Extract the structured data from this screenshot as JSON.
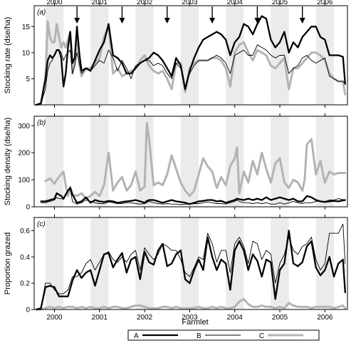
{
  "figure": {
    "x_axis_title": "Farmlet",
    "legend": [
      {
        "key": "A",
        "label": "A",
        "color": "#000000",
        "width": "thick"
      },
      {
        "key": "B",
        "label": "B",
        "color": "#000000",
        "width": "thin"
      },
      {
        "key": "C",
        "label": "C",
        "color": "#b3b3b3",
        "width": "thick"
      }
    ],
    "year_ticks": [
      "2000",
      "2001",
      "2002",
      "2003",
      "2004",
      "2005",
      "2006"
    ],
    "x_range": [
      1999.55,
      2006.5
    ],
    "shaded_winter_periods": [
      [
        1999.8,
        2000.2
      ],
      [
        2000.8,
        2001.2
      ],
      [
        2001.8,
        2002.2
      ],
      [
        2002.8,
        2003.2
      ],
      [
        2003.8,
        2004.2
      ],
      [
        2004.8,
        2005.2
      ],
      [
        2005.8,
        2006.2
      ]
    ],
    "arrow_markers_panel_a": [
      2000.5,
      2001.5,
      2002.5,
      2003.5,
      2004.5,
      2005.5
    ]
  },
  "chart_data": [
    {
      "type": "line",
      "panel_tag": "(a)",
      "ylabel": "Stocking rate (dse/ha)",
      "ylim": [
        0,
        19
      ],
      "yticks": [
        5,
        10,
        15
      ],
      "x": [
        1999.6,
        1999.7,
        1999.8,
        1999.85,
        1999.9,
        1999.95,
        2000.0,
        2000.05,
        2000.1,
        2000.15,
        2000.2,
        2000.25,
        2000.3,
        2000.35,
        2000.4,
        2000.45,
        2000.5,
        2000.55,
        2000.6,
        2000.7,
        2000.8,
        2000.9,
        2001.0,
        2001.1,
        2001.2,
        2001.3,
        2001.4,
        2001.5,
        2001.6,
        2001.7,
        2001.8,
        2001.9,
        2002.0,
        2002.1,
        2002.2,
        2002.3,
        2002.4,
        2002.5,
        2002.6,
        2002.7,
        2002.8,
        2002.9,
        2003.0,
        2003.1,
        2003.2,
        2003.3,
        2003.4,
        2003.5,
        2003.6,
        2003.7,
        2003.8,
        2003.9,
        2004.0,
        2004.1,
        2004.2,
        2004.3,
        2004.4,
        2004.5,
        2004.6,
        2004.7,
        2004.8,
        2004.9,
        2005.0,
        2005.1,
        2005.2,
        2005.3,
        2005.4,
        2005.5,
        2005.6,
        2005.7,
        2005.8,
        2005.9,
        2006.0,
        2006.1,
        2006.2,
        2006.3,
        2006.4,
        2006.45
      ],
      "series": [
        {
          "name": "A",
          "values": [
            0,
            0.3,
            5,
            8.5,
            9.5,
            9,
            9.5,
            10.5,
            10.5,
            9,
            3.5,
            6,
            11,
            14,
            8,
            9,
            15,
            10,
            6.5,
            7,
            6.5,
            8.5,
            10.5,
            12,
            15.5,
            9.5,
            9,
            8,
            6,
            6,
            7,
            8,
            8.5,
            9,
            10,
            9.5,
            8.5,
            7,
            5.5,
            9,
            7.5,
            3,
            6.5,
            9,
            11,
            12.5,
            13,
            13.5,
            14,
            13.5,
            12.5,
            9.5,
            12,
            13,
            15.5,
            15,
            13.5,
            15.5,
            17,
            16.5,
            12.5,
            11,
            12,
            14,
            10,
            12,
            11,
            13,
            14,
            15,
            15,
            13,
            12.5,
            9.5,
            9.5,
            9.5,
            9.2,
            4
          ]
        },
        {
          "name": "B",
          "values": [
            0,
            0.2,
            3,
            6.5,
            8,
            8.5,
            9.5,
            10.5,
            10.5,
            10,
            8.5,
            9.5,
            10,
            10.5,
            6,
            7.5,
            10,
            8,
            6,
            7,
            6.5,
            7.5,
            8.5,
            8,
            10.5,
            9,
            6.5,
            8.5,
            7,
            5,
            7.5,
            8,
            8.5,
            8.5,
            7.5,
            8,
            7.5,
            6,
            5,
            8,
            7,
            3.5,
            6,
            7.5,
            8.5,
            8.5,
            8.5,
            9,
            9.5,
            9,
            8,
            6,
            9.5,
            10,
            10.5,
            9.5,
            9.5,
            11.5,
            11,
            10.5,
            9.5,
            9,
            9.5,
            9.5,
            6,
            7,
            7.5,
            9,
            9.5,
            8.5,
            8,
            8.5,
            9,
            5.5,
            5,
            4.5,
            4.5,
            4
          ]
        },
        {
          "name": "C",
          "values": [
            0,
            0.2,
            5,
            16,
            13,
            12,
            12,
            15.5,
            13,
            11,
            12,
            11,
            12.5,
            14,
            6,
            8,
            14,
            8,
            5.5,
            7,
            7,
            8,
            9,
            13,
            15,
            6,
            7,
            5.5,
            6,
            6.5,
            7,
            8.5,
            9.5,
            7.5,
            6.5,
            6,
            6.5,
            5,
            3,
            8,
            8,
            2.5,
            7,
            8,
            8.5,
            8.5,
            8.5,
            9,
            9,
            8.5,
            7,
            3.5,
            10,
            11.5,
            12,
            10,
            8.5,
            10.5,
            10,
            9.5,
            7.5,
            7,
            8,
            9,
            3,
            7,
            7,
            8,
            9,
            10,
            10,
            9.5,
            8.5,
            6,
            5,
            4.5,
            4.5,
            2
          ]
        }
      ]
    },
    {
      "type": "line",
      "panel_tag": "(b)",
      "ylabel": "Stocking density (dse/ha)",
      "ylim": [
        0,
        335
      ],
      "yticks": [
        0,
        100,
        200,
        300
      ],
      "x": [
        1999.7,
        1999.8,
        1999.9,
        2000.0,
        2000.05,
        2000.1,
        2000.15,
        2000.2,
        2000.25,
        2000.3,
        2000.35,
        2000.4,
        2000.5,
        2000.6,
        2000.7,
        2000.8,
        2000.9,
        2001.0,
        2001.1,
        2001.2,
        2001.3,
        2001.4,
        2001.5,
        2001.6,
        2001.7,
        2001.8,
        2001.9,
        2002.0,
        2002.05,
        2002.1,
        2002.2,
        2002.3,
        2002.4,
        2002.5,
        2002.6,
        2002.7,
        2002.8,
        2002.9,
        2003.0,
        2003.1,
        2003.2,
        2003.3,
        2003.4,
        2003.5,
        2003.6,
        2003.7,
        2003.8,
        2003.9,
        2004.0,
        2004.05,
        2004.1,
        2004.2,
        2004.3,
        2004.4,
        2004.5,
        2004.6,
        2004.7,
        2004.8,
        2004.9,
        2005.0,
        2005.1,
        2005.2,
        2005.3,
        2005.4,
        2005.5,
        2005.55,
        2005.6,
        2005.7,
        2005.8,
        2005.9,
        2006.0,
        2006.1,
        2006.2,
        2006.3,
        2006.45
      ],
      "series": [
        {
          "name": "A",
          "values": [
            20,
            20,
            25,
            30,
            50,
            45,
            40,
            30,
            45,
            60,
            70,
            45,
            15,
            20,
            35,
            15,
            25,
            20,
            18,
            22,
            20,
            15,
            18,
            20,
            22,
            25,
            20,
            15,
            22,
            25,
            25,
            20,
            15,
            20,
            25,
            20,
            18,
            15,
            10,
            15,
            20,
            22,
            25,
            25,
            20,
            22,
            15,
            20,
            25,
            30,
            28,
            25,
            30,
            25,
            30,
            25,
            35,
            25,
            30,
            35,
            30,
            25,
            30,
            20,
            20,
            30,
            40,
            35,
            25,
            20,
            18,
            20,
            22,
            20,
            25
          ]
        },
        {
          "name": "B",
          "values": [
            15,
            15,
            20,
            25,
            35,
            30,
            30,
            28,
            50,
            60,
            65,
            20,
            10,
            15,
            25,
            20,
            15,
            12,
            12,
            18,
            15,
            12,
            12,
            15,
            15,
            12,
            10,
            12,
            15,
            20,
            15,
            12,
            10,
            12,
            10,
            10,
            8,
            10,
            10,
            12,
            12,
            15,
            18,
            15,
            12,
            12,
            10,
            15,
            20,
            25,
            20,
            15,
            15,
            12,
            15,
            12,
            15,
            10,
            10,
            15,
            10,
            15,
            20,
            15,
            12,
            15,
            15,
            15,
            20,
            20,
            20,
            25,
            25,
            30,
            25
          ]
        },
        {
          "name": "C",
          "values": [
            null,
            95,
            105,
            85,
            100,
            110,
            120,
            130,
            80,
            40,
            75,
            45,
            40,
            50,
            30,
            40,
            55,
            40,
            80,
            200,
            60,
            90,
            110,
            60,
            80,
            130,
            60,
            75,
            310,
            250,
            80,
            90,
            80,
            120,
            190,
            140,
            90,
            60,
            40,
            60,
            120,
            180,
            150,
            130,
            70,
            110,
            80,
            150,
            180,
            220,
            50,
            130,
            90,
            170,
            120,
            200,
            140,
            90,
            160,
            180,
            90,
            70,
            100,
            90,
            60,
            100,
            230,
            250,
            120,
            170,
            90,
            130,
            120,
            125,
            125
          ]
        }
      ]
    },
    {
      "type": "line",
      "panel_tag": "(c)",
      "ylabel": "Proportion grazed",
      "ylim": [
        0,
        0.7
      ],
      "yticks": [
        0,
        0.2,
        0.4,
        0.6
      ],
      "x": [
        1999.6,
        1999.7,
        1999.8,
        1999.9,
        2000.0,
        2000.1,
        2000.2,
        2000.3,
        2000.4,
        2000.5,
        2000.6,
        2000.7,
        2000.8,
        2000.9,
        2001.0,
        2001.1,
        2001.2,
        2001.3,
        2001.4,
        2001.5,
        2001.6,
        2001.7,
        2001.8,
        2001.9,
        2002.0,
        2002.1,
        2002.2,
        2002.3,
        2002.4,
        2002.5,
        2002.6,
        2002.7,
        2002.8,
        2002.9,
        2003.0,
        2003.1,
        2003.2,
        2003.3,
        2003.4,
        2003.5,
        2003.6,
        2003.7,
        2003.8,
        2003.9,
        2004.0,
        2004.1,
        2004.2,
        2004.3,
        2004.4,
        2004.5,
        2004.6,
        2004.7,
        2004.8,
        2004.9,
        2005.0,
        2005.1,
        2005.2,
        2005.3,
        2005.4,
        2005.5,
        2005.6,
        2005.7,
        2005.8,
        2005.9,
        2006.0,
        2006.1,
        2006.2,
        2006.3,
        2006.4,
        2006.45
      ],
      "series": [
        {
          "name": "A",
          "values": [
            0,
            0.01,
            0.17,
            0.18,
            0.17,
            0.1,
            0.1,
            0.1,
            0.22,
            0.3,
            0.24,
            0.28,
            0.3,
            0.18,
            0.3,
            0.42,
            0.43,
            0.32,
            0.38,
            0.43,
            0.28,
            0.38,
            0.4,
            0.23,
            0.44,
            0.36,
            0.34,
            0.45,
            0.5,
            0.33,
            0.35,
            0.42,
            0.45,
            0.23,
            0.2,
            0.3,
            0.38,
            0.3,
            0.55,
            0.4,
            0.3,
            0.38,
            0.35,
            0.15,
            0.45,
            0.52,
            0.45,
            0.3,
            0.42,
            0.37,
            0.25,
            0.38,
            0.36,
            0.08,
            0.3,
            0.35,
            0.6,
            0.35,
            0.33,
            0.36,
            0.48,
            0.52,
            0.32,
            0.26,
            0.3,
            0.4,
            0.25,
            0.35,
            0.38,
            0.13
          ]
        },
        {
          "name": "B",
          "values": [
            0,
            0.01,
            0.2,
            0.2,
            0.15,
            0.12,
            0.12,
            0.15,
            0.25,
            0.25,
            0.28,
            0.35,
            0.38,
            0.3,
            0.36,
            0.42,
            0.44,
            0.38,
            0.36,
            0.4,
            0.36,
            0.42,
            0.45,
            0.3,
            0.47,
            0.42,
            0.38,
            0.42,
            0.5,
            0.48,
            0.45,
            0.45,
            0.38,
            0.28,
            0.25,
            0.32,
            0.4,
            0.38,
            0.58,
            0.5,
            0.36,
            0.45,
            0.45,
            0.28,
            0.5,
            0.55,
            0.48,
            0.35,
            0.52,
            0.5,
            0.38,
            0.45,
            0.42,
            0.2,
            0.35,
            0.42,
            0.55,
            0.45,
            0.42,
            0.48,
            0.5,
            0.55,
            0.38,
            0.3,
            0.35,
            0.58,
            0.58,
            0.58,
            0.65,
            0.35
          ]
        },
        {
          "name": "C",
          "values": [
            0,
            0,
            0.01,
            0.02,
            0.01,
            0.02,
            0.01,
            0.02,
            0.02,
            0.01,
            0.02,
            0.01,
            0.02,
            0.01,
            0.01,
            0.02,
            0.01,
            0.02,
            0.02,
            0.01,
            0.01,
            0.02,
            0.03,
            0.03,
            0.02,
            0.01,
            0.01,
            0.01,
            0.02,
            0.02,
            0.01,
            0.02,
            0.01,
            0.01,
            0.01,
            0.01,
            0.02,
            0.01,
            0.01,
            0.02,
            0.01,
            0.02,
            0.01,
            0.01,
            0.02,
            0.06,
            0.08,
            0.04,
            0.02,
            0.02,
            0.03,
            0.02,
            0.02,
            0.01,
            0.02,
            0.01,
            0.05,
            0.03,
            0.02,
            0.02,
            0.02,
            0.01,
            0.02,
            0.02,
            0.02,
            0.02,
            0.01,
            0.02,
            0.03,
            0.01
          ]
        }
      ]
    }
  ]
}
